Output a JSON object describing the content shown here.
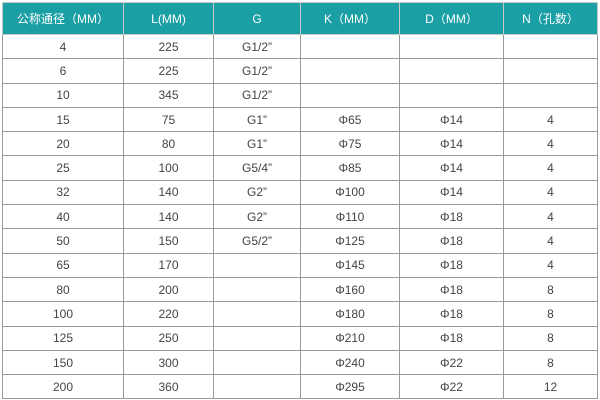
{
  "table": {
    "headers": [
      "公称通径（MM）",
      "L(MM)",
      "G",
      "K（MM）",
      "D（MM）",
      "N（孔数）"
    ],
    "rows": [
      [
        "4",
        "225",
        "G1/2”",
        "",
        "",
        ""
      ],
      [
        "6",
        "225",
        "G1/2”",
        "",
        "",
        ""
      ],
      [
        "10",
        "345",
        "G1/2”",
        "",
        "",
        ""
      ],
      [
        "15",
        "75",
        "G1”",
        "Φ65",
        "Φ14",
        "4"
      ],
      [
        "20",
        "80",
        "G1”",
        "Φ75",
        "Φ14",
        "4"
      ],
      [
        "25",
        "100",
        "G5/4”",
        "Φ85",
        "Φ14",
        "4"
      ],
      [
        "32",
        "140",
        "G2”",
        "Φ100",
        "Φ14",
        "4"
      ],
      [
        "40",
        "140",
        "G2”",
        "Φ110",
        "Φ18",
        "4"
      ],
      [
        "50",
        "150",
        "G5/2”",
        "Φ125",
        "Φ18",
        "4"
      ],
      [
        "65",
        "170",
        "",
        "Φ145",
        "Φ18",
        "4"
      ],
      [
        "80",
        "200",
        "",
        "Φ160",
        "Φ18",
        "8"
      ],
      [
        "100",
        "220",
        "",
        "Φ180",
        "Φ18",
        "8"
      ],
      [
        "125",
        "250",
        "",
        "Φ210",
        "Φ18",
        "8"
      ],
      [
        "150",
        "300",
        "",
        "Φ240",
        "Φ22",
        "8"
      ],
      [
        "200",
        "360",
        "",
        "Φ295",
        "Φ22",
        "12"
      ]
    ],
    "header_color": "#1a9fa5"
  }
}
